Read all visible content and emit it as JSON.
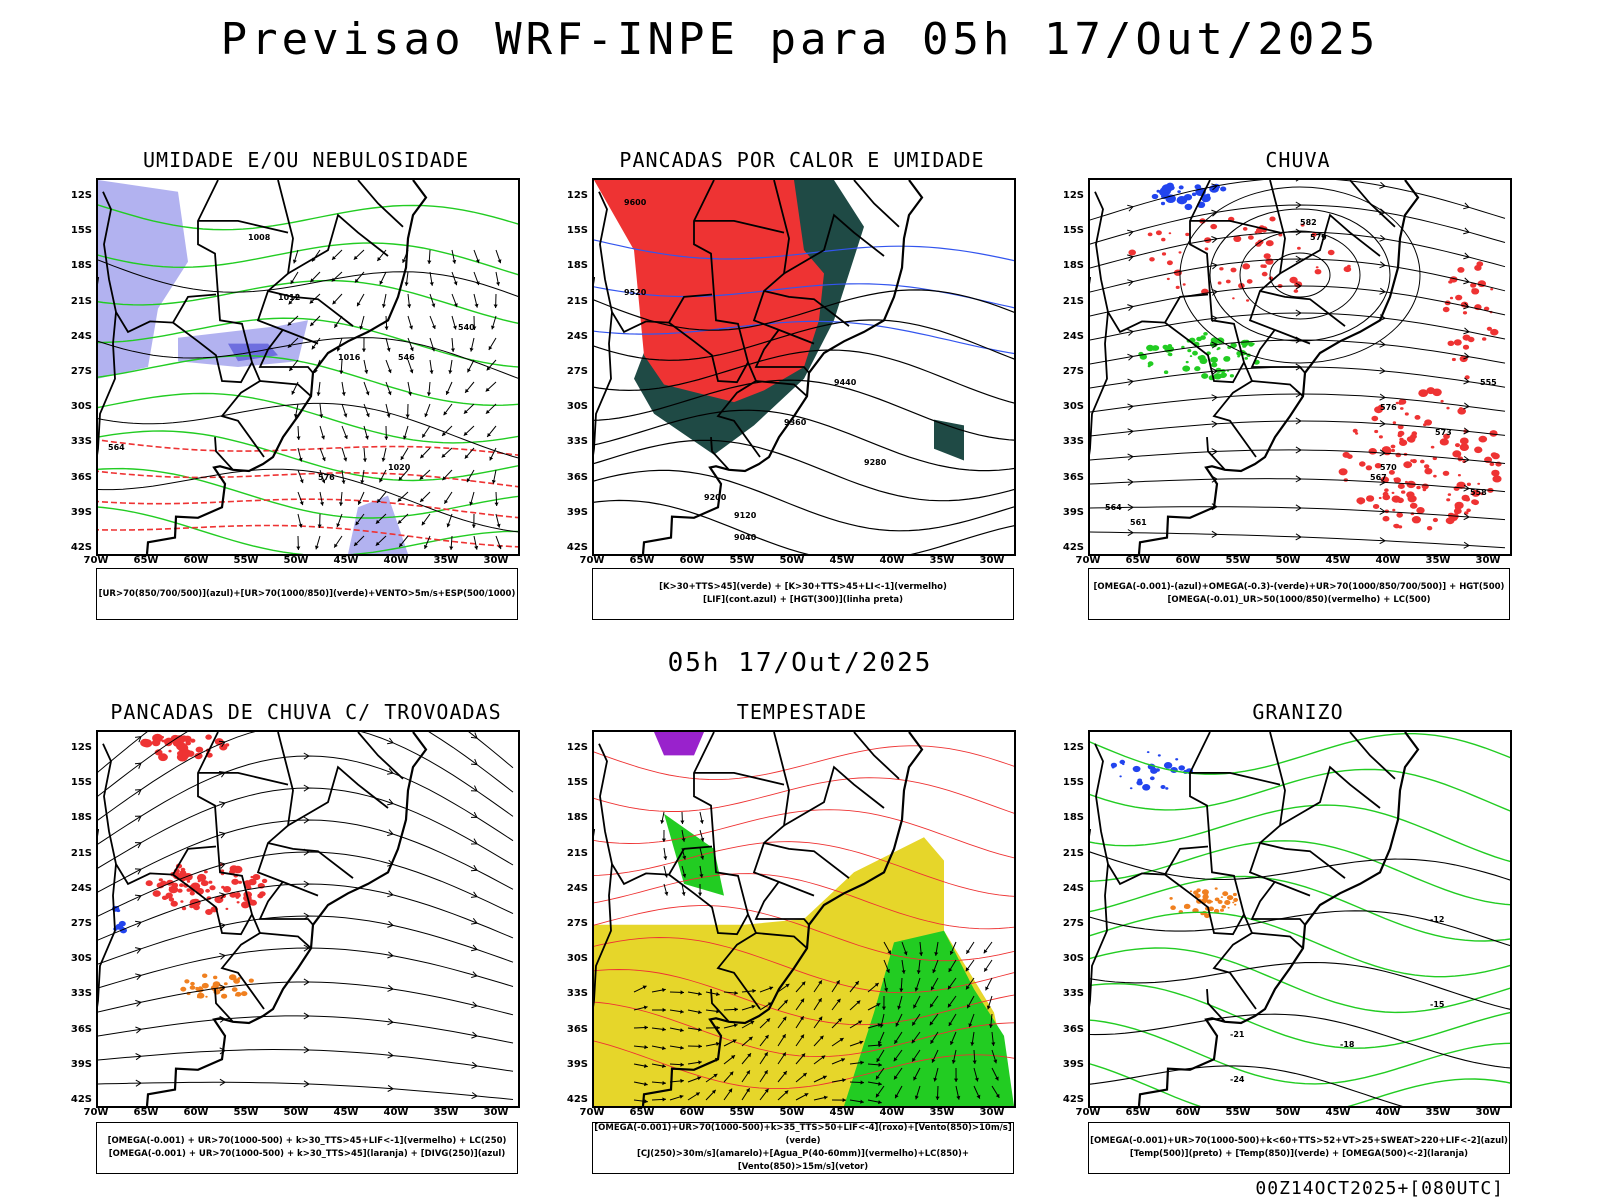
{
  "title": "Previsao WRF-INPE  para 05h 17/Out/2025",
  "mid_title": "05h 17/Out/2025",
  "footer": "00Z14OCT2025+[080UTC]",
  "axes": {
    "y_labels": [
      "12S",
      "15S",
      "18S",
      "21S",
      "24S",
      "27S",
      "30S",
      "33S",
      "36S",
      "39S",
      "42S"
    ],
    "x_labels": [
      "70W",
      "65W",
      "60W",
      "55W",
      "50W",
      "45W",
      "40W",
      "35W",
      "30W"
    ]
  },
  "panels": [
    {
      "title": "UMIDADE E/OU NEBULOSIDADE",
      "legend": [
        "[UR>70(850/700/500)](azul)+[UR>70(1000/850)](verde)+VENTO>5m/s+ESP(500/1000)"
      ],
      "contour_labels": [
        "1008",
        "1012",
        "1016",
        "1020",
        "576",
        "564",
        "546",
        "540"
      ],
      "colors": {
        "humid_high": "#6666dd",
        "humid_mid": "#aaaaee",
        "humid_low": "#22cc22",
        "thickness": "#ee3333"
      }
    },
    {
      "title": "PANCADAS POR CALOR E UMIDADE",
      "legend": [
        "[K>30+TTS>45](verde)  +  [K>30+TTS>45+LI<-1](vermelho)",
        "[LIF](cont.azul)  +  [HGT(300)](linha preta)"
      ],
      "contour_labels": [
        "9600",
        "9520",
        "9440",
        "9360",
        "9280",
        "9200",
        "9120",
        "9040"
      ],
      "colors": {
        "green": "#1f4a45",
        "red": "#ee3333",
        "lif": "#3355ee"
      }
    },
    {
      "title": "CHUVA",
      "legend": [
        "[OMEGA(-0.001)-(azul)+OMEGA(-0.3)-(verde)+UR>70(1000/850/700/500)]  +  HGT(500)",
        "[OMEGA(-0.01)_UR>50(1000/850)(vermelho)  +  LC(500)"
      ],
      "contour_labels": [
        "582",
        "579",
        "576",
        "573",
        "570",
        "567",
        "564",
        "561",
        "558",
        "555"
      ],
      "colors": {
        "blue": "#2244ee",
        "green": "#22cc22",
        "red": "#ee3333"
      }
    },
    {
      "title": "PANCADAS DE CHUVA C/ TROVOADAS",
      "legend": [
        "[OMEGA(-0.001)  +  UR>70(1000-500)  +  k>30_TTS>45+LIF<-1](vermelho)  +  LC(250)",
        "[OMEGA(-0.001)  +  UR>70(1000-500)  +  k>30_TTS>45](laranja)  +  [DIVG(250)](azul)"
      ],
      "contour_labels": [],
      "colors": {
        "red": "#ee3333",
        "orange": "#f08020",
        "blue": "#2244ee"
      }
    },
    {
      "title": "TEMPESTADE",
      "legend": [
        "[OMEGA(-0.001)+UR>70(1000-500)+k>35_TTS>50+LIF<-4](roxo)+[Vento(850)>10m/s](verde)",
        "[CJ(250)>30m/s](amarelo)+[Agua_P(40-60mm)](vermelho)+LC(850)+[Vento(850)>15m/s](vetor)"
      ],
      "contour_labels": [],
      "colors": {
        "yellow": "#e6d62a",
        "green": "#22cc22",
        "red": "#ee3333",
        "purple": "#9922cc"
      }
    },
    {
      "title": "GRANIZO",
      "legend": [
        "[OMEGA(-0.001)+UR>70(1000-500)+k<60+TTS>52+VT>25+SWEAT>220+LIF<-2](azul)",
        "[Temp(500)](preto)  +  [Temp(850)](verde)  +  [OMEGA(500)<-2](laranja)"
      ],
      "contour_labels": [
        "-12",
        "-15",
        "-18",
        "-21",
        "-24"
      ],
      "colors": {
        "green": "#22cc22",
        "orange": "#f08020",
        "blue": "#2244ee"
      }
    }
  ]
}
